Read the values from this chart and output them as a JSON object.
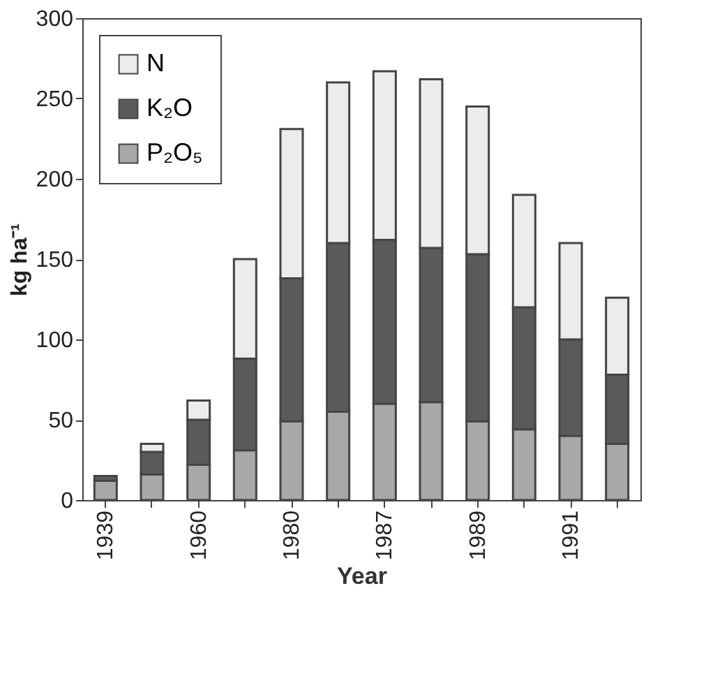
{
  "chart_data": {
    "type": "bar",
    "stacked": true,
    "xlabel": "Year",
    "ylabel": "kg ha⁻¹",
    "categories": [
      "1939",
      null,
      "1960",
      null,
      "1980",
      null,
      "1987",
      null,
      "1989",
      null,
      "1991",
      null
    ],
    "series": [
      {
        "name": "P₂O₅",
        "color": "#a8a8a8",
        "values": [
          12,
          16,
          22,
          31,
          49,
          55,
          60,
          61,
          49,
          44,
          40,
          35
        ]
      },
      {
        "name": "K₂O",
        "color": "#5a5a5a",
        "values": [
          3,
          14,
          28,
          57,
          89,
          105,
          102,
          96,
          104,
          76,
          60,
          43
        ]
      },
      {
        "name": "N",
        "color": "#ececec",
        "values": [
          null,
          5,
          12,
          62,
          93,
          100,
          105,
          105,
          92,
          70,
          60,
          48
        ]
      }
    ],
    "ylim": [
      0,
      300
    ],
    "yticks": [
      0,
      50,
      100,
      150,
      200,
      250,
      300
    ],
    "grid": false,
    "legend": "top left"
  }
}
